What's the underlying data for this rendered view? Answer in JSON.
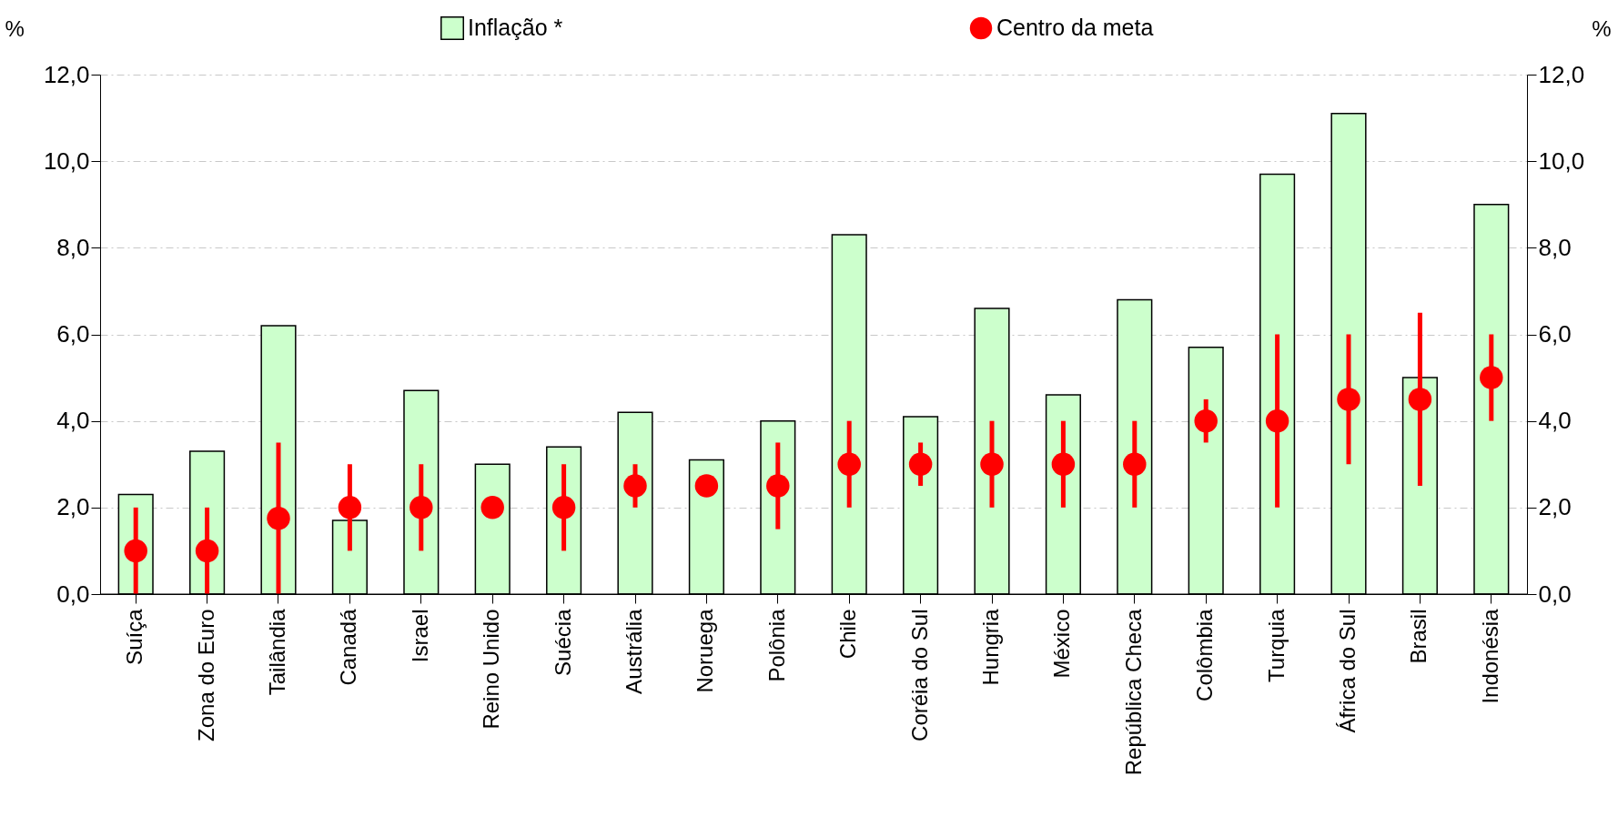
{
  "chart_data": {
    "type": "bar",
    "ylabel": "%",
    "y2label": "%",
    "categories": [
      "Suíça",
      "Zona do Euro",
      "Tailândia",
      "Canadá",
      "Israel",
      "Reino Unido",
      "Suécia",
      "Austrália",
      "Noruega",
      "Polônia",
      "Chile",
      "Coréia do Sul",
      "Hungria",
      "México",
      "República Checa",
      "Colômbia",
      "Turquia",
      "África do Sul",
      "Brasil",
      "Indonésia"
    ],
    "series": [
      {
        "name": "Inflação *",
        "color": "#ccffcc",
        "values": [
          2.3,
          3.3,
          6.2,
          1.7,
          4.7,
          3.0,
          3.4,
          4.2,
          3.1,
          4.0,
          8.3,
          4.1,
          6.6,
          4.6,
          6.8,
          5.7,
          9.7,
          11.1,
          5.0,
          9.0
        ]
      },
      {
        "name": "Centro da meta",
        "type": "scatter",
        "color": "#ff0000",
        "marker": "circle",
        "values": [
          1,
          1,
          1.75,
          2,
          2,
          2,
          2,
          2.5,
          2.5,
          2.5,
          3,
          3,
          3,
          3,
          3,
          4,
          4,
          4.5,
          4.5,
          5
        ],
        "errors": [
          [
            0,
            2
          ],
          [
            0,
            2
          ],
          [
            0,
            3.5
          ],
          [
            1,
            3
          ],
          [
            1,
            3
          ],
          null,
          [
            1,
            3
          ],
          [
            2,
            3
          ],
          null,
          [
            1.5,
            3.5
          ],
          [
            2,
            4
          ],
          [
            2.5,
            3.5
          ],
          [
            2,
            4
          ],
          [
            2,
            4
          ],
          [
            2,
            4
          ],
          [
            3.5,
            4.5
          ],
          [
            2,
            6
          ],
          [
            3,
            6
          ],
          [
            2.5,
            6.5
          ],
          [
            4,
            6
          ]
        ]
      }
    ],
    "ylim": [
      0,
      12
    ],
    "yticks": [
      {
        "value": 0,
        "label": "0,0"
      },
      {
        "value": 2,
        "label": "2,0"
      },
      {
        "value": 4,
        "label": "4,0"
      },
      {
        "value": 6,
        "label": "6,0"
      },
      {
        "value": 8,
        "label": "8,0"
      },
      {
        "value": 10,
        "label": "10,0"
      },
      {
        "value": 12,
        "label": "12,0"
      }
    ],
    "y2lim": [
      0,
      12
    ],
    "y2ticks": [
      {
        "value": 0,
        "label": "0,0"
      },
      {
        "value": 2,
        "label": "2,0"
      },
      {
        "value": 4,
        "label": "4,0"
      },
      {
        "value": 6,
        "label": "6,0"
      },
      {
        "value": 8,
        "label": "8,0"
      },
      {
        "value": 10,
        "label": "10,0"
      },
      {
        "value": 12,
        "label": "12,0"
      }
    ],
    "grid": "y",
    "legend": "top"
  }
}
